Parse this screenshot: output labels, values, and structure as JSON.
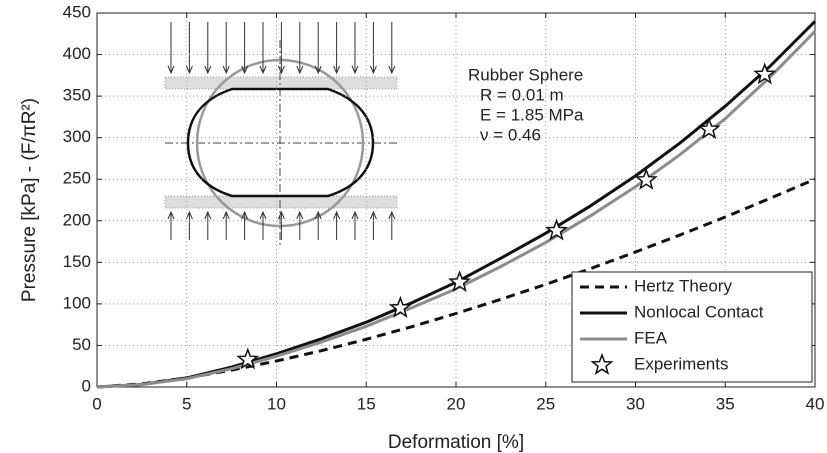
{
  "chart_data": {
    "type": "line",
    "xlabel": "Deformation [%]",
    "ylabel": "Pressure [kPa] - (F/πR²)",
    "annotations": [
      "Rubber Sphere",
      "R = 0.01 m",
      "E = 1.85 MPa",
      "ν = 0.46"
    ],
    "x": [
      0,
      2.5,
      5,
      7.5,
      10,
      12.5,
      15,
      17.5,
      20,
      22.5,
      25,
      27.5,
      30,
      32.5,
      35,
      37.5,
      40
    ],
    "series": [
      {
        "name": "Hertz Theory",
        "color": "#111111",
        "dashed": true,
        "values": [
          0,
          3.9,
          11,
          20.3,
          31.3,
          43.7,
          57.4,
          72.3,
          88.4,
          105.5,
          123.5,
          142.5,
          162.4,
          183.1,
          204.6,
          227,
          250
        ]
      },
      {
        "name": "Nonlocal Contact",
        "color": "#111111",
        "values": [
          0,
          3,
          11,
          24,
          40,
          58,
          78,
          101,
          126,
          155,
          185,
          218,
          254,
          294,
          338,
          386,
          440
        ]
      },
      {
        "name": "FEA",
        "color": "#8c8c8c",
        "values": [
          0,
          3,
          10,
          22,
          37,
          54,
          73,
          95,
          118,
          145,
          174,
          206,
          241,
          280,
          323,
          373,
          428
        ]
      },
      {
        "name": "Experiments",
        "color": "#111111",
        "marker": "star",
        "x": [
          8.4,
          16.9,
          20.2,
          25.6,
          30.6,
          34.1,
          37.2
        ],
        "values": [
          33,
          95,
          126,
          188,
          249,
          310,
          376
        ]
      }
    ],
    "xlim": [
      0,
      40
    ],
    "xticks": [
      0,
      5,
      10,
      15,
      20,
      25,
      30,
      35,
      40
    ],
    "ylim": [
      0,
      450
    ],
    "yticks": [
      0,
      50,
      100,
      150,
      200,
      250,
      300,
      350,
      400,
      450
    ],
    "grid": true,
    "legend": "lower right"
  }
}
